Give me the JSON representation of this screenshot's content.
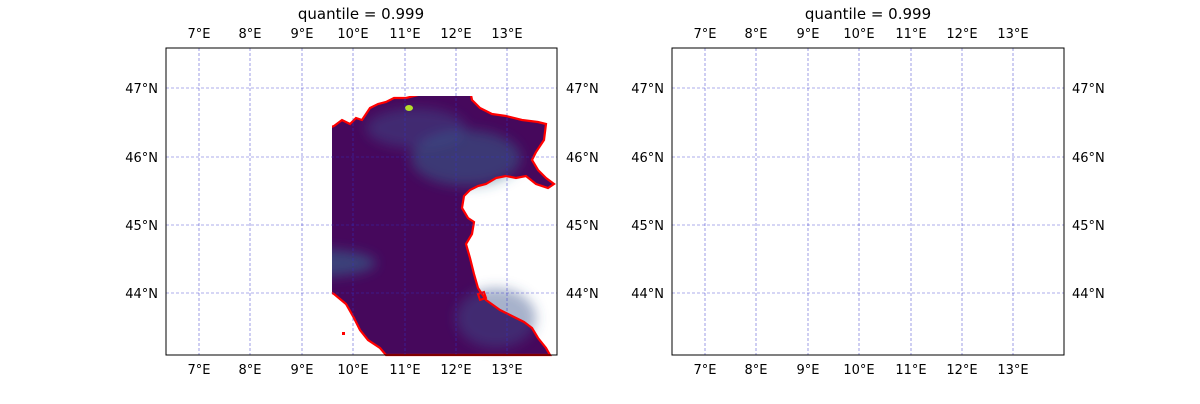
{
  "maps": [
    {
      "title": "quantile = 0.999",
      "lon_ticks": [
        "7°E",
        "8°E",
        "9°E",
        "10°E",
        "11°E",
        "12°E",
        "13°E"
      ],
      "lat_ticks": [
        "47°N",
        "46°N",
        "45°N",
        "44°N"
      ]
    },
    {
      "title": "quantile = 0.999",
      "lon_ticks": [
        "7°E",
        "8°E",
        "9°E",
        "10°E",
        "11°E",
        "12°E",
        "13°E"
      ],
      "lat_ticks": [
        "47°N",
        "46°N",
        "45°N",
        "44°N"
      ]
    }
  ],
  "colors": {
    "coastline": "#ff0000",
    "gridline": "#3333cc",
    "field_low": "#46085c",
    "field_mid": "#31688e",
    "field_high": "#b5de2b"
  }
}
